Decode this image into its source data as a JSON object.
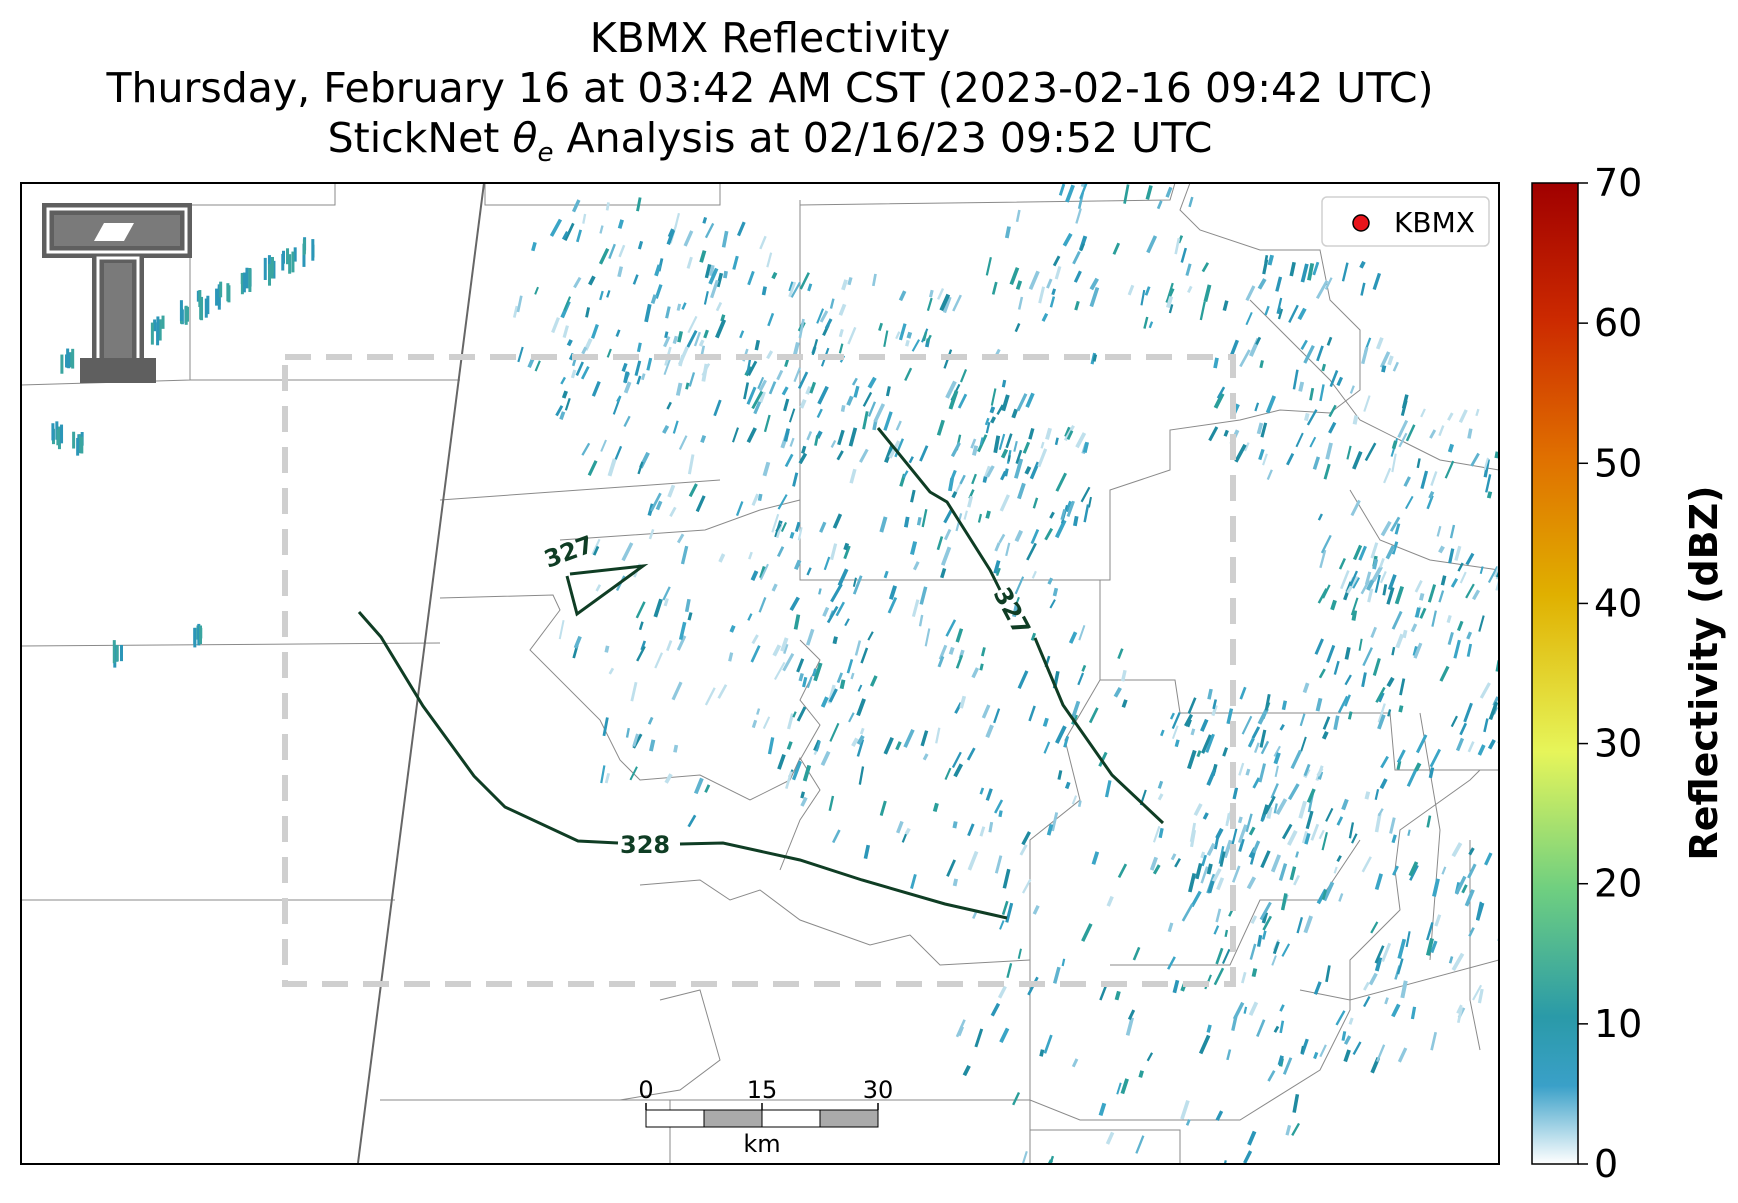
{
  "header": {
    "line1": "KBMX Reflectivity",
    "line2": "Thursday, February 16 at 03:42 AM CST (2023-02-16 09:42 UTC)",
    "line3_prefix": "StickNet ",
    "line3_theta": "θ",
    "line3_sub": "e",
    "line3_suffix": " Analysis at 02/16/23 09:52 UTC"
  },
  "legend": {
    "label": "KBMX",
    "marker_color": "#e8141b"
  },
  "contours": [
    {
      "label": "327"
    },
    {
      "label": "327"
    },
    {
      "label": "328"
    }
  ],
  "contour_color": "#0f3d24",
  "scale_bar": {
    "ticks": [
      "0",
      "15",
      "30"
    ],
    "unit": "km"
  },
  "colorbar": {
    "title": "Reflectivity (dBZ)",
    "ticks": [
      "0",
      "10",
      "20",
      "30",
      "40",
      "50",
      "60",
      "70"
    ],
    "min": 0,
    "max": 70
  },
  "logo": {
    "name": "Texas Tech Double T"
  }
}
